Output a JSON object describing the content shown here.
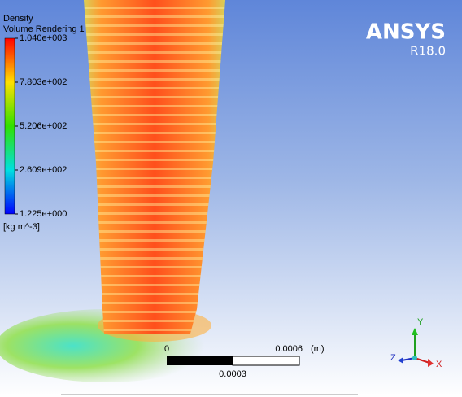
{
  "legend": {
    "title": "Density",
    "subtitle": "Volume Rendering 1",
    "labels": [
      "1.040e+003",
      "7.803e+002",
      "5.206e+002",
      "2.609e+002",
      "1.225e+000"
    ],
    "unit": "[kg m^-3]"
  },
  "logo": {
    "name": "ANSYS",
    "version": "R18.0"
  },
  "scale_bar": {
    "start": "0",
    "end": "0.0006",
    "unit": "(m)",
    "middle": "0.0003"
  },
  "triad": {
    "y": "Y",
    "z": "Z",
    "x": "X"
  }
}
